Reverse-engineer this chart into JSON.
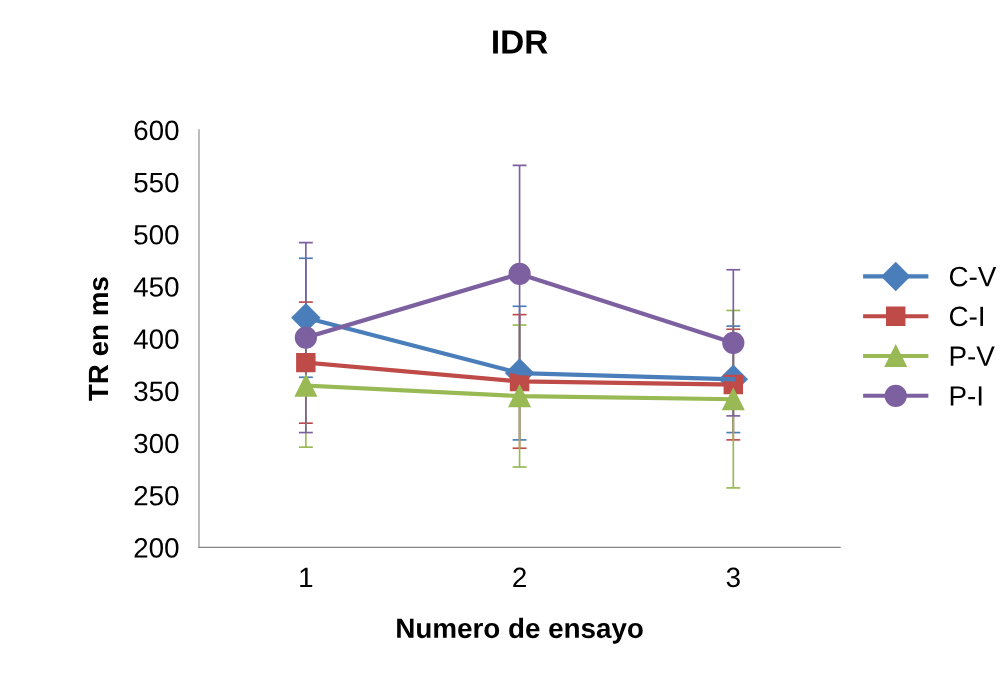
{
  "chart_data": {
    "type": "line",
    "title": "IDR",
    "xlabel": "Numero de ensayo",
    "ylabel": "TR en ms",
    "categories": [
      "1",
      "2",
      "3"
    ],
    "ylim": [
      200,
      600
    ],
    "yticks": [
      200,
      250,
      300,
      350,
      400,
      450,
      500,
      550,
      600
    ],
    "grid": false,
    "legend": "right",
    "series": [
      {
        "name": "C-V",
        "color": "#4a7ebb",
        "marker": "diamond",
        "values": [
          420,
          367,
          361
        ],
        "errors": [
          57,
          64,
          51
        ]
      },
      {
        "name": "C-I",
        "color": "#be4b48",
        "marker": "square",
        "values": [
          377,
          359,
          356
        ],
        "errors": [
          58,
          64,
          53
        ]
      },
      {
        "name": "P-V",
        "color": "#98b954",
        "marker": "triangle",
        "values": [
          355,
          345,
          342
        ],
        "errors": [
          59,
          68,
          85
        ]
      },
      {
        "name": "P-I",
        "color": "#7d60a0",
        "marker": "circle",
        "values": [
          401,
          462,
          396
        ],
        "errors": [
          91,
          104,
          70
        ]
      }
    ]
  }
}
